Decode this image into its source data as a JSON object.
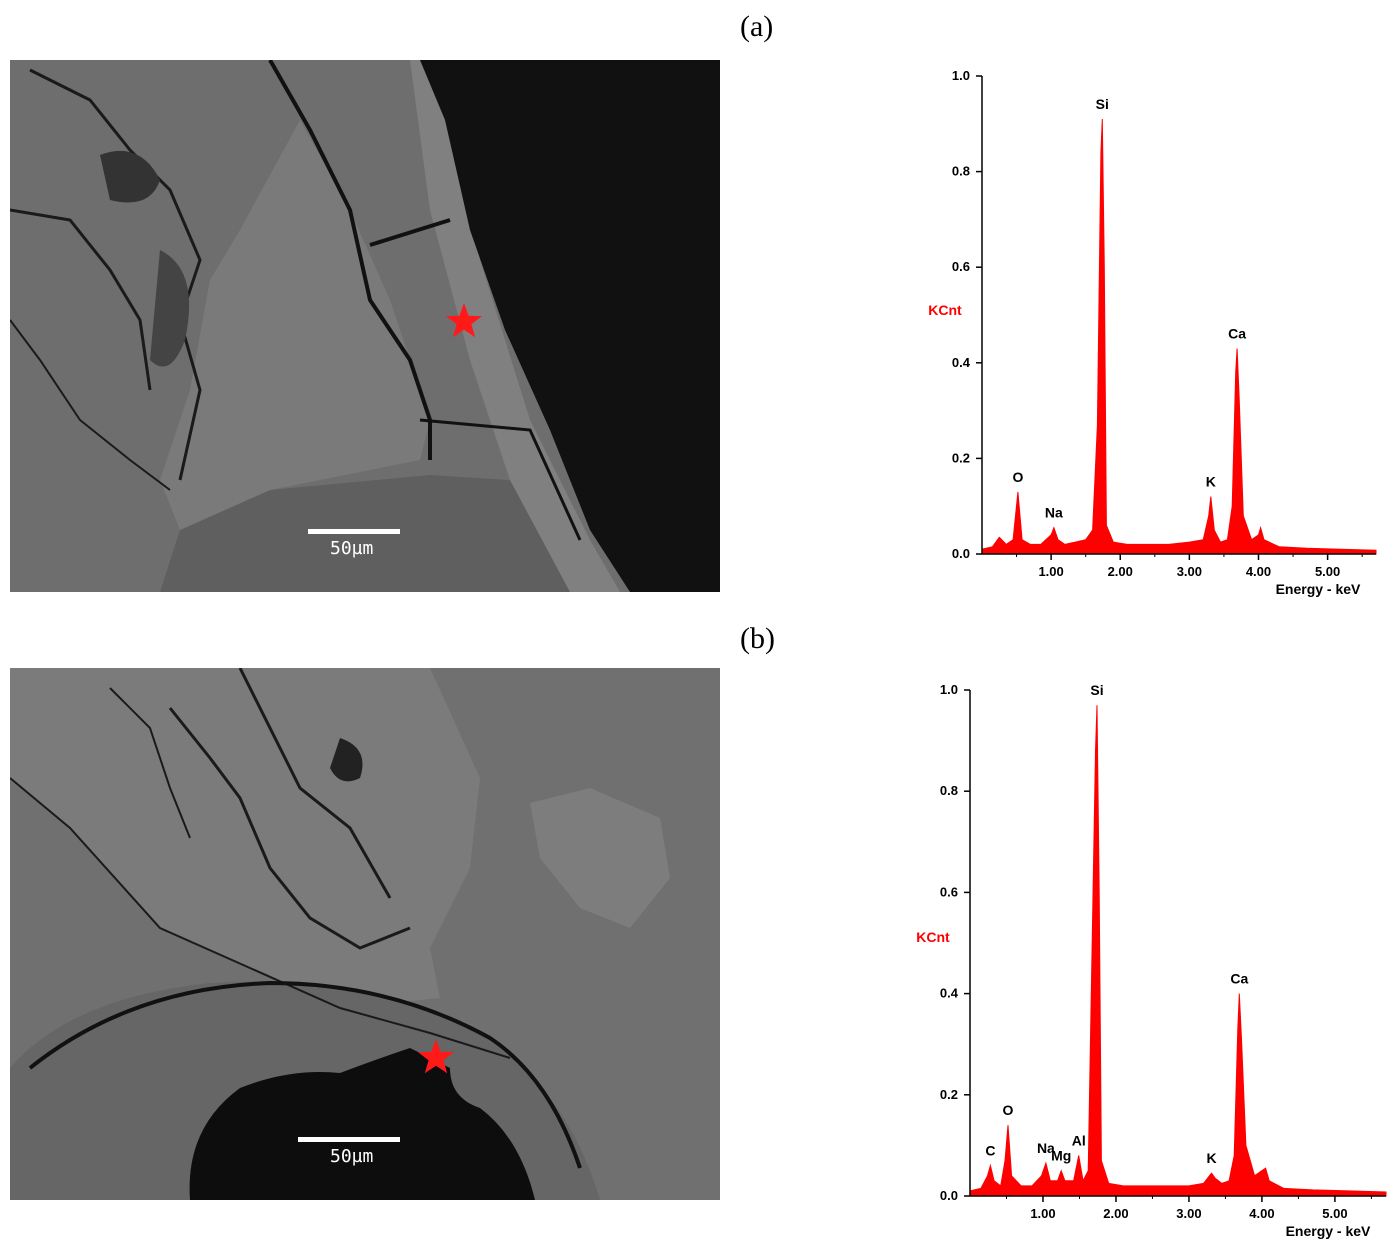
{
  "figure": {
    "panels": [
      {
        "label": "(a)",
        "sem": {
          "scale_label": "50µm",
          "marker_color": "#ff1a1a"
        },
        "chart_data": {
          "type": "area",
          "ylabel": "KCnt",
          "xlabel": "Energy - keV",
          "ylim": [
            0,
            1.0
          ],
          "xlim": [
            0,
            5.7
          ],
          "yticks": [
            "0.0",
            "0.2",
            "0.4",
            "0.6",
            "0.8",
            "1.0"
          ],
          "xticks": [
            "1.00",
            "2.00",
            "3.00",
            "4.00",
            "5.00"
          ],
          "series_color": "#ff0000",
          "peaks": [
            {
              "label": "O",
              "x": 0.52,
              "y": 0.13
            },
            {
              "label": "Na",
              "x": 1.04,
              "y": 0.055
            },
            {
              "label": "Si",
              "x": 1.74,
              "y": 0.91
            },
            {
              "label": "K",
              "x": 3.31,
              "y": 0.12
            },
            {
              "label": "Ca",
              "x": 3.69,
              "y": 0.43
            }
          ],
          "spectrum": [
            [
              0.0,
              0.01
            ],
            [
              0.15,
              0.015
            ],
            [
              0.25,
              0.035
            ],
            [
              0.35,
              0.02
            ],
            [
              0.45,
              0.03
            ],
            [
              0.52,
              0.13
            ],
            [
              0.58,
              0.03
            ],
            [
              0.7,
              0.02
            ],
            [
              0.85,
              0.02
            ],
            [
              1.0,
              0.04
            ],
            [
              1.04,
              0.055
            ],
            [
              1.1,
              0.03
            ],
            [
              1.2,
              0.02
            ],
            [
              1.35,
              0.025
            ],
            [
              1.5,
              0.03
            ],
            [
              1.6,
              0.05
            ],
            [
              1.67,
              0.27
            ],
            [
              1.72,
              0.84
            ],
            [
              1.74,
              0.91
            ],
            [
              1.77,
              0.6
            ],
            [
              1.8,
              0.06
            ],
            [
              1.9,
              0.025
            ],
            [
              2.1,
              0.02
            ],
            [
              2.4,
              0.02
            ],
            [
              2.7,
              0.02
            ],
            [
              3.0,
              0.025
            ],
            [
              3.2,
              0.03
            ],
            [
              3.28,
              0.08
            ],
            [
              3.31,
              0.12
            ],
            [
              3.36,
              0.05
            ],
            [
              3.45,
              0.025
            ],
            [
              3.55,
              0.03
            ],
            [
              3.62,
              0.1
            ],
            [
              3.67,
              0.38
            ],
            [
              3.69,
              0.43
            ],
            [
              3.72,
              0.33
            ],
            [
              3.78,
              0.08
            ],
            [
              3.9,
              0.03
            ],
            [
              4.0,
              0.04
            ],
            [
              4.03,
              0.055
            ],
            [
              4.08,
              0.03
            ],
            [
              4.3,
              0.015
            ],
            [
              4.7,
              0.012
            ],
            [
              5.2,
              0.01
            ],
            [
              5.7,
              0.008
            ]
          ]
        }
      },
      {
        "label": "(b)",
        "sem": {
          "scale_label": "50µm",
          "marker_color": "#ff1a1a"
        },
        "chart_data": {
          "type": "area",
          "ylabel": "KCnt",
          "xlabel": "Energy - keV",
          "ylim": [
            0,
            1.0
          ],
          "xlim": [
            0,
            5.7
          ],
          "yticks": [
            "0.0",
            "0.2",
            "0.4",
            "0.6",
            "0.8",
            "1.0"
          ],
          "xticks": [
            "1.00",
            "2.00",
            "3.00",
            "4.00",
            "5.00"
          ],
          "series_color": "#ff0000",
          "peaks": [
            {
              "label": "C",
              "x": 0.28,
              "y": 0.06
            },
            {
              "label": "O",
              "x": 0.52,
              "y": 0.14
            },
            {
              "label": "Na",
              "x": 1.04,
              "y": 0.065
            },
            {
              "label": "Mg",
              "x": 1.25,
              "y": 0.05
            },
            {
              "label": "Al",
              "x": 1.49,
              "y": 0.08
            },
            {
              "label": "Si",
              "x": 1.74,
              "y": 0.97
            },
            {
              "label": "K",
              "x": 3.31,
              "y": 0.045
            },
            {
              "label": "Ca",
              "x": 3.69,
              "y": 0.4
            }
          ],
          "spectrum": [
            [
              0.0,
              0.01
            ],
            [
              0.15,
              0.015
            ],
            [
              0.24,
              0.04
            ],
            [
              0.28,
              0.06
            ],
            [
              0.33,
              0.03
            ],
            [
              0.42,
              0.02
            ],
            [
              0.48,
              0.07
            ],
            [
              0.52,
              0.14
            ],
            [
              0.57,
              0.04
            ],
            [
              0.7,
              0.02
            ],
            [
              0.85,
              0.02
            ],
            [
              0.98,
              0.04
            ],
            [
              1.04,
              0.065
            ],
            [
              1.1,
              0.03
            ],
            [
              1.2,
              0.03
            ],
            [
              1.25,
              0.05
            ],
            [
              1.3,
              0.03
            ],
            [
              1.42,
              0.03
            ],
            [
              1.49,
              0.08
            ],
            [
              1.55,
              0.03
            ],
            [
              1.62,
              0.05
            ],
            [
              1.68,
              0.55
            ],
            [
              1.72,
              0.88
            ],
            [
              1.74,
              0.97
            ],
            [
              1.77,
              0.6
            ],
            [
              1.8,
              0.07
            ],
            [
              1.9,
              0.025
            ],
            [
              2.1,
              0.02
            ],
            [
              2.4,
              0.02
            ],
            [
              2.7,
              0.02
            ],
            [
              3.0,
              0.02
            ],
            [
              3.2,
              0.025
            ],
            [
              3.28,
              0.04
            ],
            [
              3.31,
              0.045
            ],
            [
              3.36,
              0.035
            ],
            [
              3.45,
              0.025
            ],
            [
              3.55,
              0.03
            ],
            [
              3.62,
              0.08
            ],
            [
              3.67,
              0.33
            ],
            [
              3.69,
              0.4
            ],
            [
              3.72,
              0.31
            ],
            [
              3.78,
              0.1
            ],
            [
              3.9,
              0.04
            ],
            [
              4.0,
              0.05
            ],
            [
              4.05,
              0.055
            ],
            [
              4.1,
              0.03
            ],
            [
              4.3,
              0.015
            ],
            [
              4.7,
              0.012
            ],
            [
              5.2,
              0.01
            ],
            [
              5.7,
              0.008
            ]
          ]
        }
      }
    ]
  }
}
